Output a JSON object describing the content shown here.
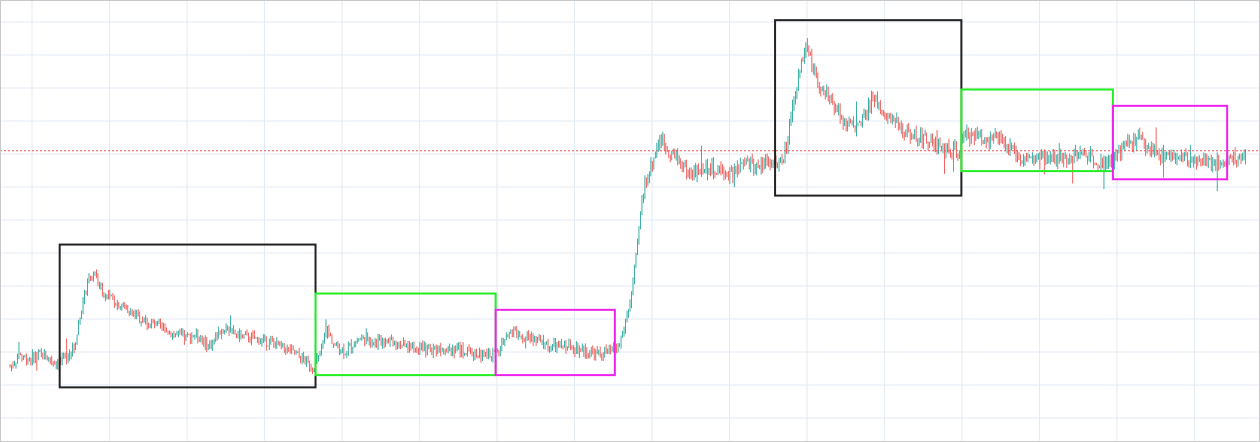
{
  "chart_data": {
    "type": "candlestick-line",
    "title": "",
    "xlabel": "",
    "ylabel": "",
    "grid": true,
    "legend": "none",
    "colors": {
      "background": "#ffffff",
      "grid": "#e3ebf3",
      "up": "#26a69a",
      "down": "#ef5350",
      "reference_line": "#ef5350",
      "box_black": "#222222",
      "box_green": "#22ee22",
      "box_magenta": "#ee22ee",
      "border": "#c8c8c8"
    },
    "x_range": [
      0,
      1000
    ],
    "y_range": [
      0,
      100
    ],
    "reference_level": 66,
    "price_path": [
      [
        0,
        13
      ],
      [
        8,
        16
      ],
      [
        15,
        15
      ],
      [
        25,
        16
      ],
      [
        38,
        14
      ],
      [
        45,
        15
      ],
      [
        52,
        18
      ],
      [
        58,
        28
      ],
      [
        63,
        34
      ],
      [
        68,
        36
      ],
      [
        75,
        31
      ],
      [
        85,
        29
      ],
      [
        95,
        27
      ],
      [
        110,
        24
      ],
      [
        125,
        22
      ],
      [
        140,
        20
      ],
      [
        150,
        21
      ],
      [
        160,
        18
      ],
      [
        170,
        22
      ],
      [
        175,
        23
      ],
      [
        180,
        21
      ],
      [
        195,
        20
      ],
      [
        210,
        19
      ],
      [
        225,
        17
      ],
      [
        235,
        15
      ],
      [
        244,
        13
      ],
      [
        250,
        16
      ],
      [
        255,
        22
      ],
      [
        262,
        18
      ],
      [
        270,
        17
      ],
      [
        282,
        20
      ],
      [
        295,
        19
      ],
      [
        305,
        20
      ],
      [
        320,
        18
      ],
      [
        335,
        17
      ],
      [
        350,
        18
      ],
      [
        365,
        17
      ],
      [
        378,
        16
      ],
      [
        388,
        16
      ],
      [
        394,
        17
      ],
      [
        400,
        22
      ],
      [
        408,
        21
      ],
      [
        420,
        20
      ],
      [
        435,
        18
      ],
      [
        450,
        18
      ],
      [
        462,
        17
      ],
      [
        475,
        16
      ],
      [
        484,
        17
      ],
      [
        490,
        18
      ],
      [
        495,
        23
      ],
      [
        500,
        30
      ],
      [
        505,
        42
      ],
      [
        508,
        52
      ],
      [
        511,
        58
      ],
      [
        516,
        62
      ],
      [
        523,
        69
      ],
      [
        528,
        67
      ],
      [
        538,
        64
      ],
      [
        548,
        60
      ],
      [
        558,
        62
      ],
      [
        570,
        61
      ],
      [
        582,
        60
      ],
      [
        592,
        63
      ],
      [
        600,
        62
      ],
      [
        612,
        64
      ],
      [
        618,
        62
      ],
      [
        623,
        64
      ],
      [
        627,
        70
      ],
      [
        632,
        79
      ],
      [
        637,
        88
      ],
      [
        641,
        92
      ],
      [
        647,
        86
      ],
      [
        655,
        80
      ],
      [
        665,
        77
      ],
      [
        675,
        72
      ],
      [
        685,
        72
      ],
      [
        695,
        79
      ],
      [
        708,
        74
      ],
      [
        720,
        71
      ],
      [
        735,
        69
      ],
      [
        750,
        67
      ],
      [
        759,
        66
      ],
      [
        764,
        66
      ],
      [
        770,
        70
      ],
      [
        776,
        70
      ],
      [
        785,
        69
      ],
      [
        795,
        69
      ],
      [
        806,
        66
      ],
      [
        816,
        64
      ],
      [
        830,
        64
      ],
      [
        845,
        64
      ],
      [
        858,
        65
      ],
      [
        868,
        65
      ],
      [
        880,
        63
      ],
      [
        890,
        64
      ],
      [
        900,
        68
      ],
      [
        910,
        69
      ],
      [
        918,
        66
      ],
      [
        930,
        65
      ],
      [
        940,
        64
      ],
      [
        950,
        64
      ],
      [
        962,
        64
      ],
      [
        972,
        63
      ],
      [
        985,
        64
      ],
      [
        995,
        65
      ]
    ],
    "annotations": [
      {
        "type": "rect",
        "color": "black",
        "x0": 40,
        "x1": 246,
        "y0": 8,
        "y1": 43
      },
      {
        "type": "rect",
        "color": "green",
        "x0": 246,
        "x1": 391,
        "y0": 11,
        "y1": 31
      },
      {
        "type": "rect",
        "color": "magenta",
        "x0": 391,
        "x1": 487,
        "y0": 11,
        "y1": 27
      },
      {
        "type": "rect",
        "color": "black",
        "x0": 616,
        "x1": 766,
        "y0": 55,
        "y1": 98
      },
      {
        "type": "rect",
        "color": "green",
        "x0": 766,
        "x1": 888,
        "y0": 61,
        "y1": 81
      },
      {
        "type": "rect",
        "color": "magenta",
        "x0": 888,
        "x1": 980,
        "y0": 59,
        "y1": 77
      }
    ]
  }
}
